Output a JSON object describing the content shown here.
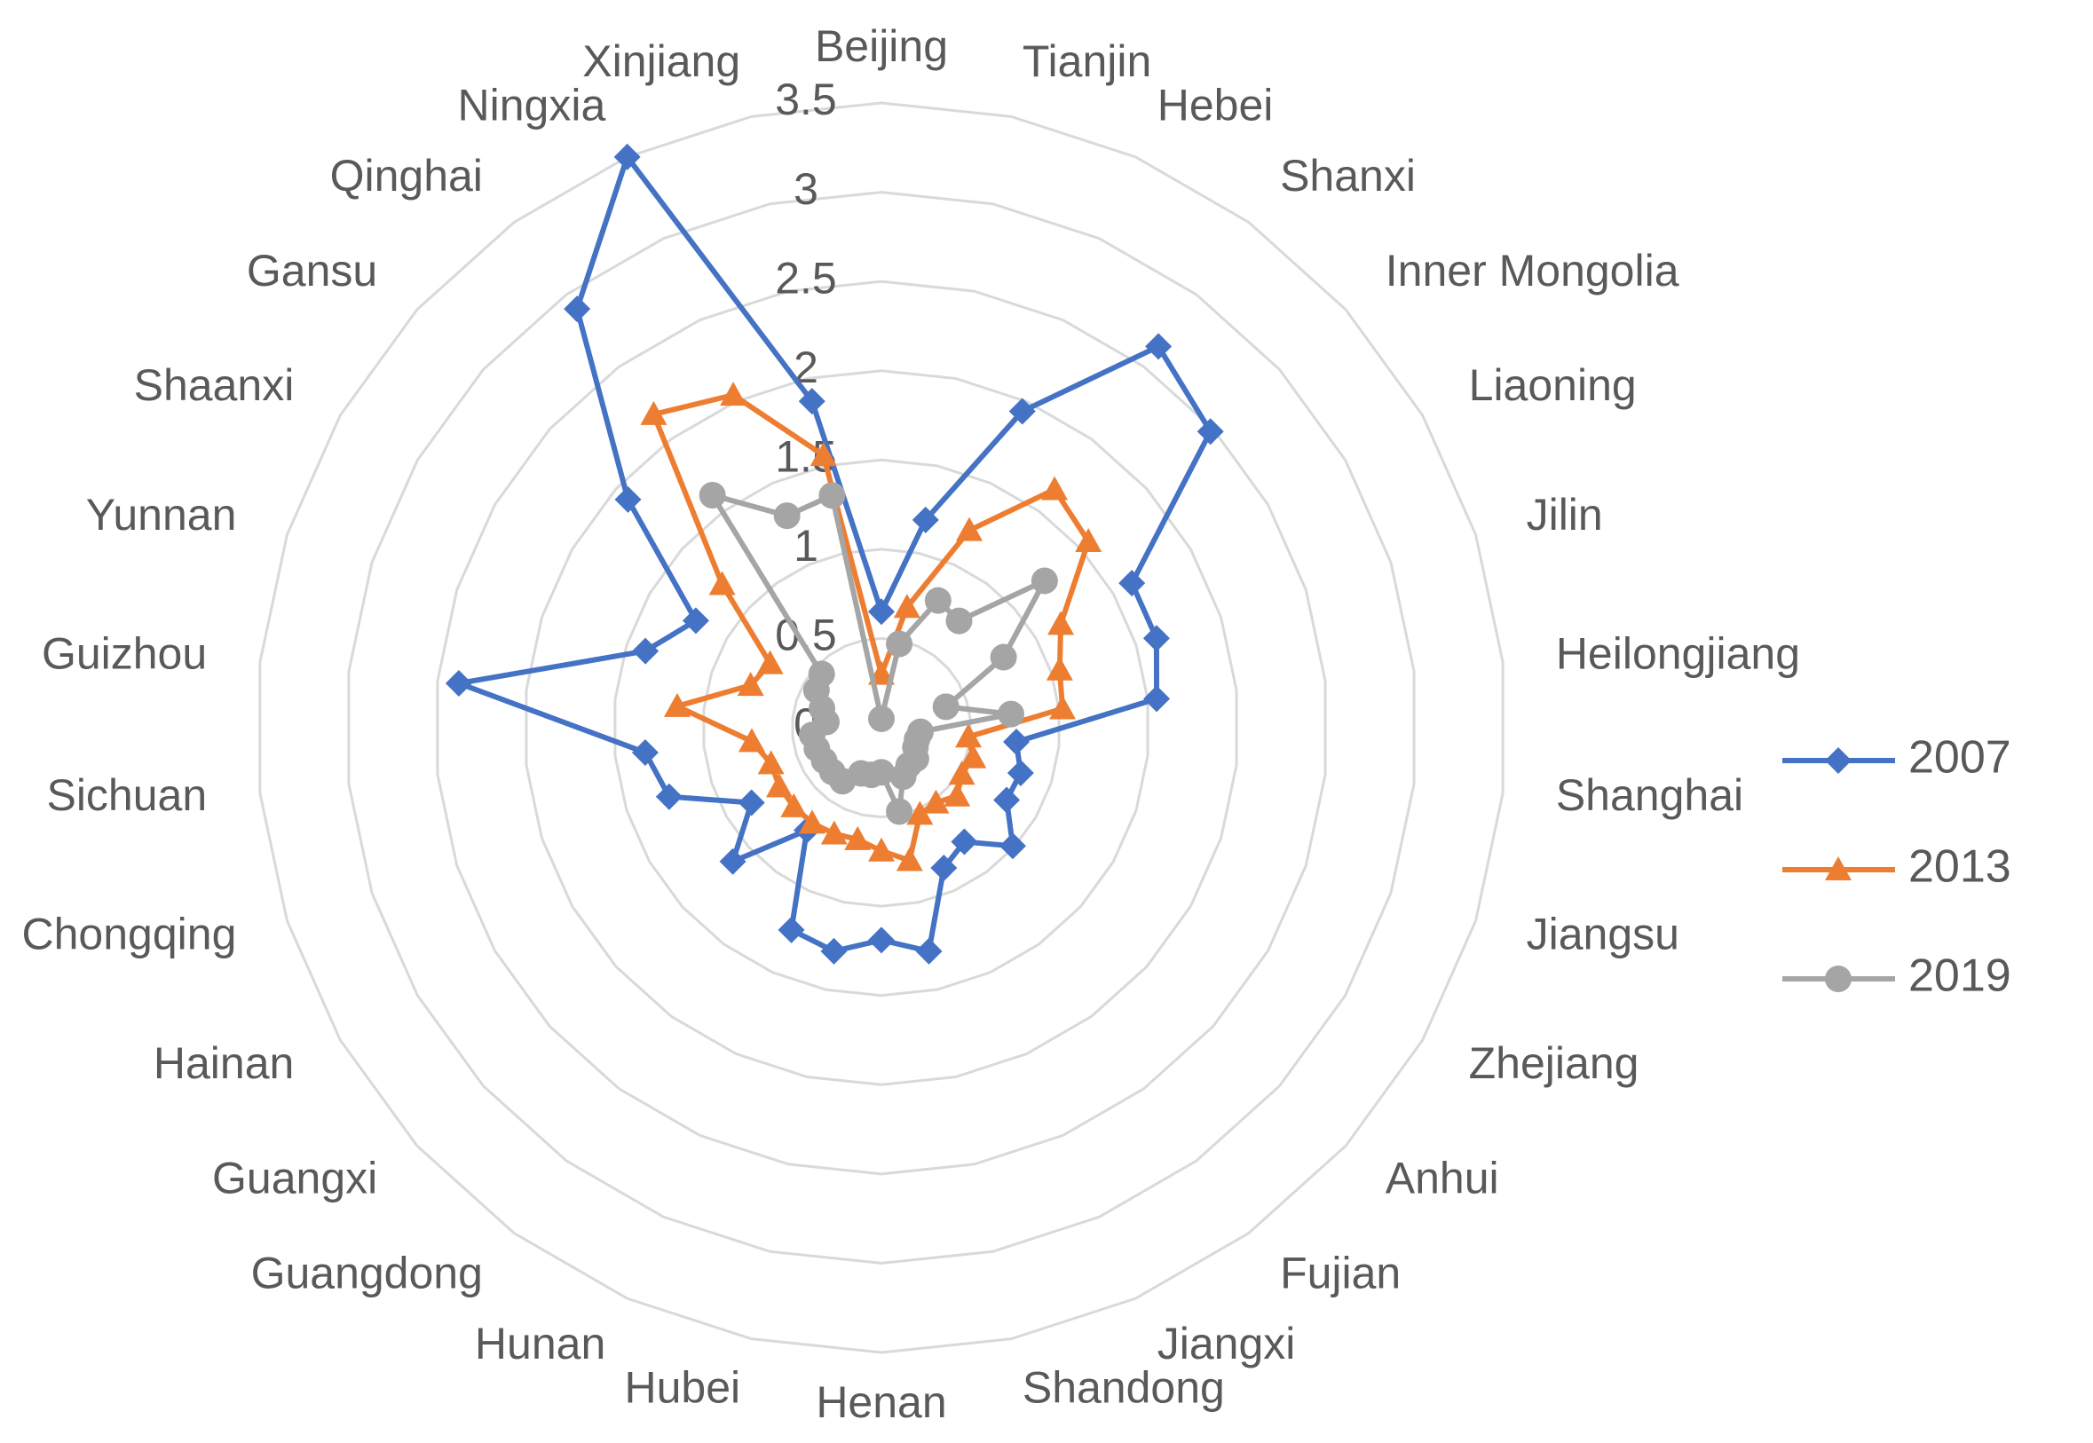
{
  "chart_data": {
    "type": "radar",
    "categories": [
      "Beijing",
      "Tianjin",
      "Hebei",
      "Shanxi",
      "Inner Mongolia",
      "Liaoning",
      "Jilin",
      "Heilongjiang",
      "Shanghai",
      "Jiangsu",
      "Zhejiang",
      "Anhui",
      "Fujian",
      "Jiangxi",
      "Shandong",
      "Henan",
      "Hubei",
      "Hunan",
      "Guangdong",
      "Guangxi",
      "Hainan",
      "Chongqing",
      "Sichuan",
      "Guizhou",
      "Yunnan",
      "Shaanxi",
      "Gansu",
      "Qinghai",
      "Ningxia",
      "Xinjiang"
    ],
    "series": [
      {
        "name": "2007",
        "color": "#4472c4",
        "marker": "diamond",
        "values": [
          0.65,
          1.19,
          1.94,
          2.64,
          2.48,
          1.62,
          1.62,
          1.55,
          0.76,
          0.82,
          0.81,
          0.99,
          0.79,
          0.86,
          1.28,
          1.19,
          1.28,
          1.24,
          0.71,
          1.12,
          0.84,
          1.25,
          1.33,
          2.38,
          1.39,
          1.2,
          1.91,
          2.9,
          3.5,
          1.87
        ]
      },
      {
        "name": "2013",
        "color": "#ed7d31",
        "marker": "triangle",
        "values": [
          0.3,
          0.69,
          1.21,
          1.65,
          1.56,
          1.16,
          1.05,
          1.02,
          0.49,
          0.54,
          0.52,
          0.57,
          0.52,
          0.53,
          0.76,
          0.69,
          0.64,
          0.65,
          0.66,
          0.66,
          0.66,
          0.65,
          0.73,
          1.15,
          0.77,
          0.72,
          1.2,
          2.17,
          2.04,
          1.56
        ]
      },
      {
        "name": "2019",
        "color": "#a5a5a5",
        "marker": "circle",
        "values": [
          0.05,
          0.48,
          0.78,
          0.74,
          1.23,
          0.79,
          0.38,
          0.73,
          0.22,
          0.21,
          0.22,
          0.26,
          0.26,
          0.3,
          0.48,
          0.25,
          0.27,
          0.28,
          0.37,
          0.37,
          0.37,
          0.38,
          0.39,
          0.31,
          0.35,
          0.42,
          0.45,
          1.61,
          1.3,
          1.33
        ]
      }
    ],
    "ylim": [
      0,
      3.5
    ],
    "yticks": [
      0,
      0.5,
      1,
      1.5,
      2,
      2.5,
      3,
      3.5
    ],
    "grid": true,
    "legend": "right"
  }
}
